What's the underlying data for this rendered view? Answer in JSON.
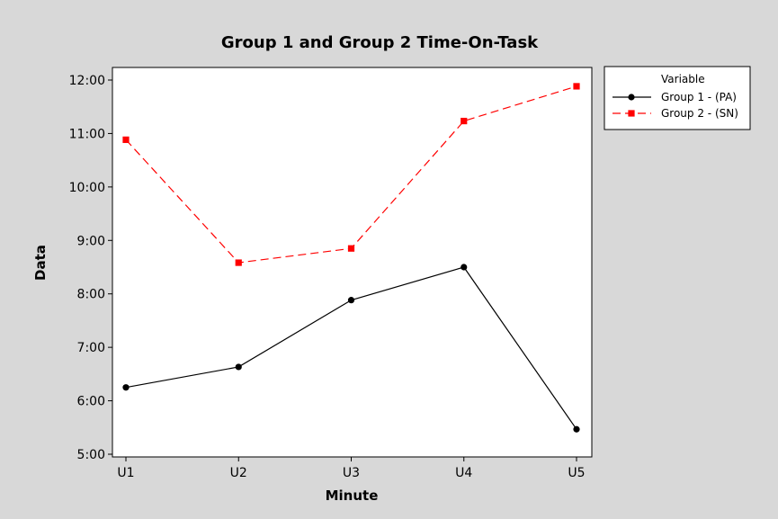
{
  "chart_data": {
    "type": "line",
    "title": "Group 1 and Group 2 Time-On-Task",
    "xlabel": "Minute",
    "ylabel": "Data",
    "categories": [
      "U1",
      "U2",
      "U3",
      "U4",
      "U5"
    ],
    "ylim": [
      "5:00",
      "12:00"
    ],
    "yticks": [
      "5:00",
      "6:00",
      "7:00",
      "8:00",
      "9:00",
      "10:00",
      "11:00",
      "12:00"
    ],
    "grid": false,
    "legend": {
      "title": "Variable",
      "placement": "right"
    },
    "series": [
      {
        "name": "Group 1 - (PA)",
        "values": [
          "6:15",
          "6:38",
          "7:53",
          "8:30",
          "5:28"
        ],
        "color": "#000000",
        "marker": "circle",
        "line": "solid"
      },
      {
        "name": "Group 2 - (SN)",
        "values": [
          "10:53",
          "8:35",
          "8:51",
          "11:14",
          "11:53"
        ],
        "color": "#ff0000",
        "marker": "square",
        "line": "dashed"
      }
    ]
  },
  "colors": {
    "figure_background": "#d8d8d8",
    "plot_background": "#ffffff"
  }
}
